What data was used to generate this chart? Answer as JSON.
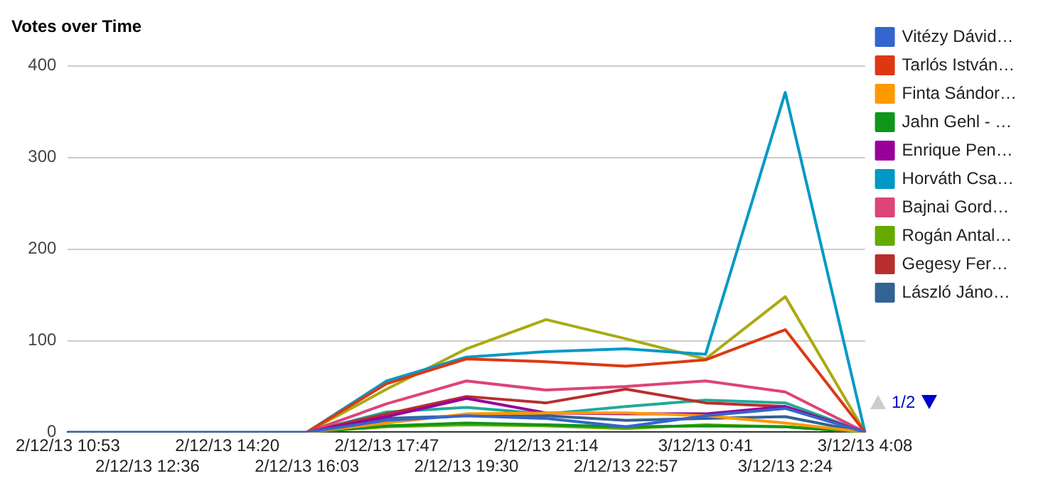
{
  "chart_data": {
    "type": "line",
    "title": "Votes over Time",
    "categories": [
      "2/12/13 10:53",
      "2/12/13 12:36",
      "2/12/13 14:20",
      "2/12/13 16:03",
      "2/12/13 17:47",
      "2/12/13 19:30",
      "2/12/13 21:14",
      "2/12/13 22:57",
      "3/12/13 0:41",
      "3/12/13 2:24",
      "3/12/13 4:08"
    ],
    "series": [
      {
        "name": "Vitézy Dávid…",
        "color": "#3366cc",
        "values": [
          0,
          0,
          0,
          0,
          13,
          18,
          15,
          6,
          18,
          26,
          0
        ]
      },
      {
        "name": "Tarlós István…",
        "color": "#dc3912",
        "values": [
          null,
          null,
          null,
          0,
          53,
          80,
          77,
          72,
          79,
          112,
          0
        ]
      },
      {
        "name": "Finta Sándor…",
        "color": "#ff9900",
        "values": [
          null,
          null,
          null,
          0,
          10,
          20,
          21,
          21,
          18,
          10,
          0
        ]
      },
      {
        "name": "Jahn Gehl - …",
        "color": "#109618",
        "values": [
          null,
          null,
          null,
          0,
          7,
          10,
          8,
          6,
          7,
          6,
          0
        ]
      },
      {
        "name": "Enrique Pen…",
        "color": "#990099",
        "values": [
          null,
          null,
          null,
          0,
          17,
          37,
          21,
          20,
          20,
          28,
          0
        ]
      },
      {
        "name": "Horváth Csa…",
        "color": "#0099c6",
        "values": [
          null,
          null,
          null,
          0,
          56,
          82,
          88,
          91,
          85,
          371,
          0
        ]
      },
      {
        "name": "Bajnai Gord…",
        "color": "#dd4477",
        "values": [
          null,
          null,
          null,
          0,
          31,
          56,
          46,
          50,
          56,
          44,
          0
        ]
      },
      {
        "name": "Rogán Antal…",
        "color": "#66aa00",
        "values": [
          null,
          null,
          null,
          0,
          6,
          8,
          7,
          4,
          8,
          6,
          0
        ]
      },
      {
        "name": "Gegesy Fer…",
        "color": "#b82e2e",
        "values": [
          null,
          null,
          null,
          0,
          20,
          39,
          32,
          47,
          32,
          28,
          0
        ]
      },
      {
        "name": "László Jáno…",
        "color": "#316395",
        "values": [
          null,
          null,
          null,
          0,
          15,
          18,
          18,
          13,
          15,
          17,
          0
        ]
      },
      {
        "color": "#aaaa11",
        "values": [
          null,
          null,
          null,
          0,
          47,
          91,
          123,
          102,
          80,
          148,
          0
        ]
      },
      {
        "color": "#22aa99",
        "values": [
          null,
          null,
          null,
          0,
          22,
          27,
          20,
          28,
          35,
          32,
          0
        ]
      }
    ],
    "ylim": [
      0,
      400
    ],
    "yticks": [
      0,
      100,
      200,
      300,
      400
    ],
    "grid": "y",
    "legend": "right",
    "marker": "none",
    "line_style": "solid",
    "annotations": [
      "1/2"
    ]
  }
}
